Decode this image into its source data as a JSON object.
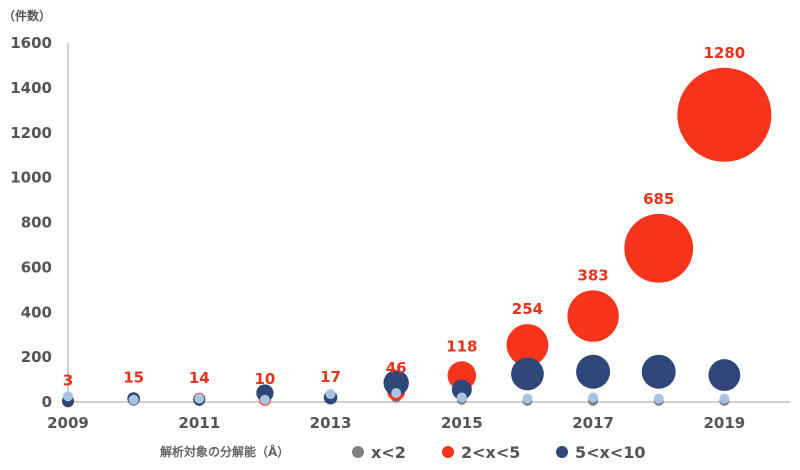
{
  "chart_data": {
    "type": "bubble",
    "y_unit": "（件数）",
    "ylim": [
      0,
      1600
    ],
    "y_ticks": [
      0,
      200,
      400,
      600,
      800,
      1000,
      1200,
      1400,
      1600
    ],
    "xlim": [
      2009,
      2020
    ],
    "x_ticks": [
      2009,
      2011,
      2013,
      2015,
      2017,
      2019
    ],
    "grid": false,
    "legend": {
      "position": "bottom",
      "title": "解析対象の分解能（Å）",
      "entries": [
        {
          "name": "x<2",
          "color": "#808080"
        },
        {
          "name": "2<x<5",
          "color": "#f5341b"
        },
        {
          "name": "5<x<10",
          "color": "#2e4678"
        }
      ]
    },
    "series": [
      {
        "name": "x<2",
        "color": "#808080",
        "points": [
          {
            "x": 2009,
            "y": 5
          },
          {
            "x": 2010,
            "y": 5
          },
          {
            "x": 2011,
            "y": 5
          },
          {
            "x": 2012,
            "y": 5
          },
          {
            "x": 2013,
            "y": 15
          },
          {
            "x": 2014,
            "y": 20
          },
          {
            "x": 2015,
            "y": 10
          },
          {
            "x": 2016,
            "y": 5
          },
          {
            "x": 2017,
            "y": 5
          },
          {
            "x": 2018,
            "y": 5
          },
          {
            "x": 2019,
            "y": 5
          }
        ]
      },
      {
        "name": "2<x<5",
        "color": "#f5341b",
        "points": [
          {
            "x": 2009,
            "y": 3,
            "label": "3"
          },
          {
            "x": 2010,
            "y": 15,
            "label": "15"
          },
          {
            "x": 2011,
            "y": 14,
            "label": "14"
          },
          {
            "x": 2012,
            "y": 10,
            "label": "10"
          },
          {
            "x": 2013,
            "y": 17,
            "label": "17"
          },
          {
            "x": 2014,
            "y": 46,
            "label": "46"
          },
          {
            "x": 2015,
            "y": 118,
            "label": "118"
          },
          {
            "x": 2016,
            "y": 254,
            "label": "254"
          },
          {
            "x": 2017,
            "y": 383,
            "label": "383"
          },
          {
            "x": 2018,
            "y": 685,
            "label": "685"
          },
          {
            "x": 2019,
            "y": 1280,
            "label": "1280"
          }
        ]
      },
      {
        "name": "5<x<10",
        "color": "#2e4678",
        "points": [
          {
            "x": 2009,
            "y": 5
          },
          {
            "x": 2010,
            "y": 15
          },
          {
            "x": 2011,
            "y": 10
          },
          {
            "x": 2012,
            "y": 40
          },
          {
            "x": 2013,
            "y": 20
          },
          {
            "x": 2014,
            "y": 85
          },
          {
            "x": 2015,
            "y": 55
          },
          {
            "x": 2016,
            "y": 125
          },
          {
            "x": 2017,
            "y": 135
          },
          {
            "x": 2018,
            "y": 135
          },
          {
            "x": 2019,
            "y": 120
          }
        ]
      },
      {
        "color": "#a9c3e2",
        "points": [
          {
            "x": 2009,
            "y": 25
          },
          {
            "x": 2010,
            "y": 10
          },
          {
            "x": 2011,
            "y": 15
          },
          {
            "x": 2012,
            "y": 10
          },
          {
            "x": 2013,
            "y": 35
          },
          {
            "x": 2014,
            "y": 40
          },
          {
            "x": 2015,
            "y": 20
          },
          {
            "x": 2016,
            "y": 15
          },
          {
            "x": 2017,
            "y": 20
          },
          {
            "x": 2018,
            "y": 15
          },
          {
            "x": 2019,
            "y": 15
          }
        ]
      }
    ]
  }
}
